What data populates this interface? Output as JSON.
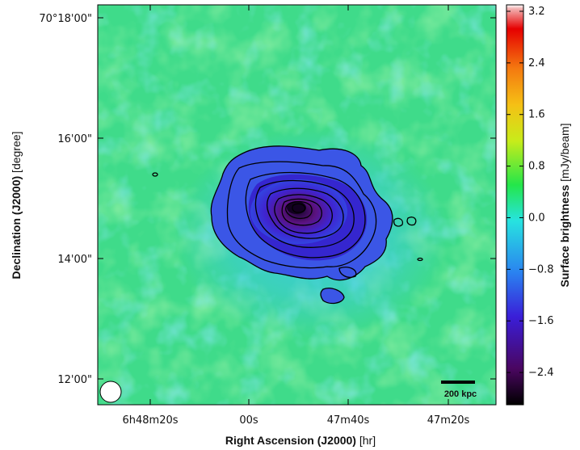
{
  "chart_data": {
    "type": "heatmap",
    "title": "",
    "xlabel": {
      "main": "Right Ascension (J2000)",
      "unit": "[hr]"
    },
    "ylabel": {
      "main": "Declination (J2000)",
      "unit": "[degree]"
    },
    "x_ticks": [
      "6h48m20s",
      "00s",
      "47m40s",
      "47m20s"
    ],
    "y_ticks": [
      "70°18'00\"",
      "16'00\"",
      "14'00\"",
      "12'00\""
    ],
    "colorbar": {
      "label": {
        "main": "Surface brightness",
        "unit": "[mJy/beam]"
      },
      "ticks": [
        3.2,
        2.4,
        1.6,
        0.8,
        0.0,
        -0.8,
        -1.6,
        -2.4
      ],
      "tick_labels": [
        "3.2",
        "2.4",
        "1.6",
        "0.8",
        "0.0",
        "−0.8",
        "−1.6",
        "−2.4"
      ],
      "range": [
        -2.9,
        3.3
      ],
      "colors": [
        "#000000",
        "#5a0a6e",
        "#3b1fd6",
        "#2a8cf0",
        "#27e1e0",
        "#27e65a",
        "#e6e61a",
        "#f58c12",
        "#e60000",
        "#ffffff"
      ]
    },
    "scale_bar": {
      "label": "200 kpc"
    },
    "beam": "circle lower-left",
    "background_color": "#3cd98c",
    "contours": "black"
  }
}
